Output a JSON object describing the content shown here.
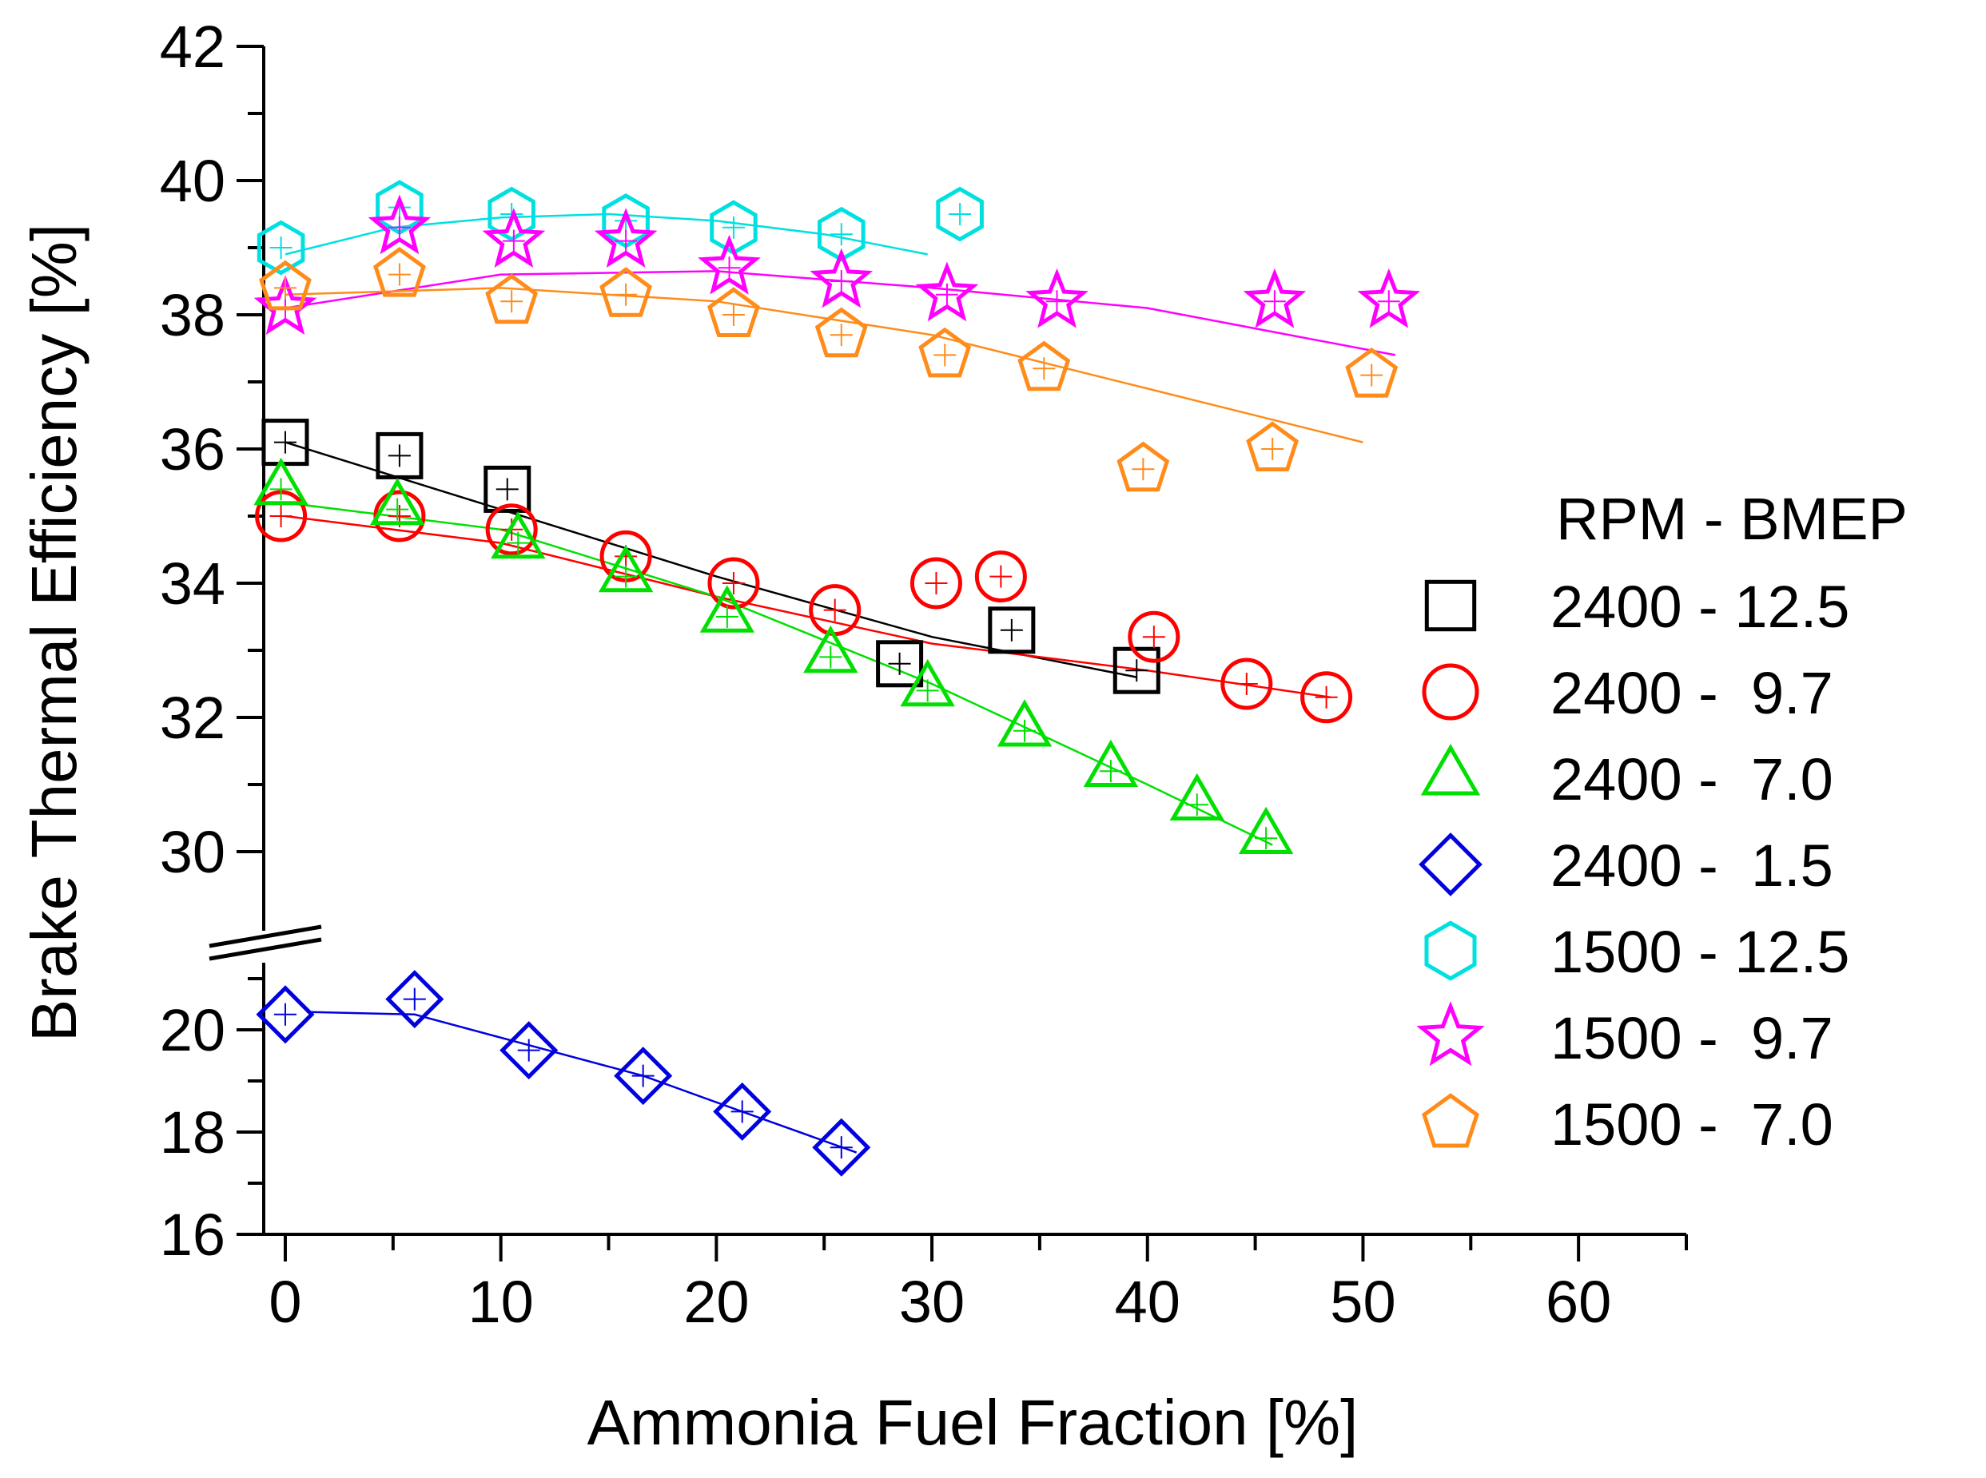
{
  "chart_data": {
    "type": "scatter",
    "title": "",
    "xlabel": "Ammonia Fuel Fraction [%]",
    "ylabel": "Brake Thermal Efficiency [%]",
    "xlim": [
      -1,
      65
    ],
    "xticks": [
      0,
      10,
      20,
      30,
      40,
      50,
      60
    ],
    "y_break": true,
    "ylim_upper": [
      29,
      42
    ],
    "yticks_upper": [
      30,
      32,
      34,
      36,
      38,
      40,
      42
    ],
    "ylim_lower": [
      16,
      21
    ],
    "yticks_lower": [
      16,
      18,
      20
    ],
    "legend_title": "RPM - BMEP",
    "legend_location": "right",
    "series": [
      {
        "name": "2400 - 12.5",
        "marker": "square",
        "color": "#000000",
        "x": [
          0,
          5.3,
          10.3,
          28.5,
          33.7,
          39.5
        ],
        "y": [
          36.1,
          35.9,
          35.4,
          32.8,
          33.3,
          32.7
        ],
        "fit": [
          [
            0,
            36.1
          ],
          [
            10,
            35.1
          ],
          [
            20,
            34.1
          ],
          [
            30,
            33.2
          ],
          [
            39.5,
            32.6
          ]
        ]
      },
      {
        "name": "2400 -  9.7",
        "marker": "circle",
        "color": "#ff0000",
        "x": [
          -0.2,
          5.3,
          10.5,
          15.8,
          20.8,
          25.5,
          30.2,
          33.2,
          40.3,
          44.6,
          48.3
        ],
        "y": [
          35.0,
          35.0,
          34.8,
          34.4,
          34.0,
          33.6,
          34.0,
          34.1,
          33.2,
          32.5,
          32.3
        ],
        "fit": [
          [
            0,
            35.0
          ],
          [
            10,
            34.6
          ],
          [
            20,
            33.8
          ],
          [
            30,
            33.1
          ],
          [
            40,
            32.7
          ],
          [
            48.5,
            32.3
          ]
        ]
      },
      {
        "name": "2400 -  7.0",
        "marker": "triangle",
        "color": "#00e000",
        "x": [
          -0.2,
          5.2,
          10.8,
          15.8,
          20.5,
          25.3,
          29.8,
          34.3,
          38.3,
          42.3,
          45.5
        ],
        "y": [
          35.4,
          35.1,
          34.6,
          34.1,
          33.5,
          32.9,
          32.4,
          31.8,
          31.2,
          30.7,
          30.2
        ],
        "fit": [
          [
            0,
            35.2
          ],
          [
            10,
            34.8
          ],
          [
            20,
            33.8
          ],
          [
            30,
            32.5
          ],
          [
            40,
            31.0
          ],
          [
            45.8,
            30.1
          ]
        ]
      },
      {
        "name": "2400 -  1.5",
        "marker": "diamond",
        "color": "#0000e0",
        "x": [
          0,
          6.0,
          11.3,
          16.6,
          21.2,
          25.8
        ],
        "y": [
          20.3,
          20.6,
          19.6,
          19.1,
          18.4,
          17.7
        ],
        "fit": [
          [
            1,
            20.35
          ],
          [
            6,
            20.3
          ],
          [
            11.3,
            19.7
          ],
          [
            16.6,
            19.1
          ],
          [
            21.2,
            18.4
          ],
          [
            26.5,
            17.6
          ]
        ]
      },
      {
        "name": "1500 - 12.5",
        "marker": "hexagon",
        "color": "#00e0e0",
        "x": [
          -0.2,
          5.3,
          10.5,
          15.8,
          20.8,
          25.8,
          31.3
        ],
        "y": [
          39.0,
          39.6,
          39.5,
          39.4,
          39.3,
          39.2,
          39.5
        ],
        "fit": [
          [
            0,
            38.9
          ],
          [
            5,
            39.3
          ],
          [
            10,
            39.45
          ],
          [
            15,
            39.5
          ],
          [
            20,
            39.4
          ],
          [
            25,
            39.2
          ],
          [
            29.8,
            38.9
          ]
        ]
      },
      {
        "name": "1500 -  9.7",
        "marker": "star",
        "color": "#ff00ff",
        "x": [
          0,
          5.3,
          10.6,
          15.8,
          20.6,
          25.8,
          30.7,
          35.8,
          45.9,
          51.2
        ],
        "y": [
          38.1,
          39.3,
          39.1,
          39.1,
          38.7,
          38.5,
          38.3,
          38.2,
          38.2,
          38.2
        ],
        "fit": [
          [
            0,
            38.1
          ],
          [
            10,
            38.6
          ],
          [
            20,
            38.65
          ],
          [
            30,
            38.4
          ],
          [
            40,
            38.1
          ],
          [
            51.5,
            37.4
          ]
        ]
      },
      {
        "name": "1500 -  7.0",
        "marker": "pentagon",
        "color": "#ff8c1a",
        "x": [
          0,
          5.3,
          10.5,
          15.8,
          20.8,
          25.8,
          30.6,
          35.2,
          39.8,
          45.8,
          50.4
        ],
        "y": [
          38.4,
          38.6,
          38.2,
          38.3,
          38.0,
          37.7,
          37.4,
          37.2,
          35.7,
          36.0,
          37.1
        ],
        "fit": [
          [
            0,
            38.3
          ],
          [
            10,
            38.4
          ],
          [
            20,
            38.2
          ],
          [
            30,
            37.7
          ],
          [
            40,
            36.9
          ],
          [
            50,
            36.1
          ]
        ]
      }
    ]
  }
}
